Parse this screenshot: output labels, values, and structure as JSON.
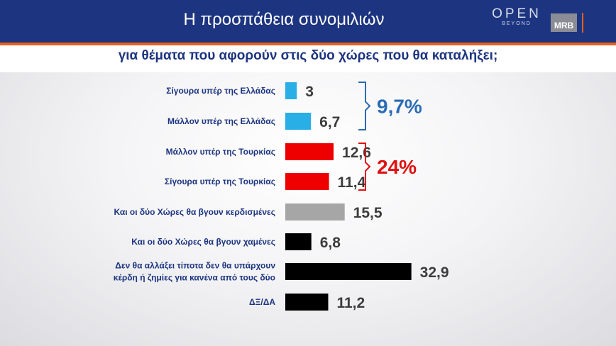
{
  "header": {
    "title": "Η προσπάθεια συνομιλιών",
    "subtitle": "για θέματα που αφορούν στις δύο χώρες που θα καταλήξει;",
    "logo_open": "OPEN",
    "logo_open_sub": "BEYOND",
    "logo_mrb": "MRB"
  },
  "colors": {
    "header_bg": "#1d3580",
    "accent": "#e8621e",
    "blue": "#29aee6",
    "red": "#ee0000",
    "gray": "#a6a6a6",
    "black": "#000000",
    "group_blue": "#2a6bb5",
    "group_red": "#e01010"
  },
  "chart_data": {
    "type": "bar",
    "orientation": "horizontal",
    "categories": [
      [
        "Σίγουρα υπέρ της Ελλάδας"
      ],
      [
        "Μάλλον υπέρ της Ελλάδας"
      ],
      [
        "Μάλλον υπέρ της Τουρκίας"
      ],
      [
        "Σίγουρα υπέρ της Τουρκίας"
      ],
      [
        "Και οι δύο Χώρες θα βγουν κερδισμένες"
      ],
      [
        "Και οι δύο Χώρες θα βγουν χαμένες"
      ],
      [
        "Δεν θα αλλάξει τίποτα δεν θα υπάρχουν",
        "κέρδη ή ζημίες για κανένα από τους δύο"
      ],
      [
        "ΔΞ/ΔΑ"
      ]
    ],
    "values": [
      3,
      6.7,
      12.6,
      11.4,
      15.5,
      6.8,
      32.9,
      11.2
    ],
    "value_labels": [
      "3",
      "6,7",
      "12,6",
      "11,4",
      "15,5",
      "6,8",
      "32,9",
      "11,2"
    ],
    "bar_colors": [
      "#29aee6",
      "#29aee6",
      "#ee0000",
      "#ee0000",
      "#a6a6a6",
      "#000000",
      "#000000",
      "#000000"
    ],
    "groups": [
      {
        "label": "9,7%",
        "rows": [
          0,
          1
        ],
        "color": "#2a6bb5"
      },
      {
        "label": "24%",
        "rows": [
          2,
          3
        ],
        "color": "#e01010"
      }
    ]
  }
}
